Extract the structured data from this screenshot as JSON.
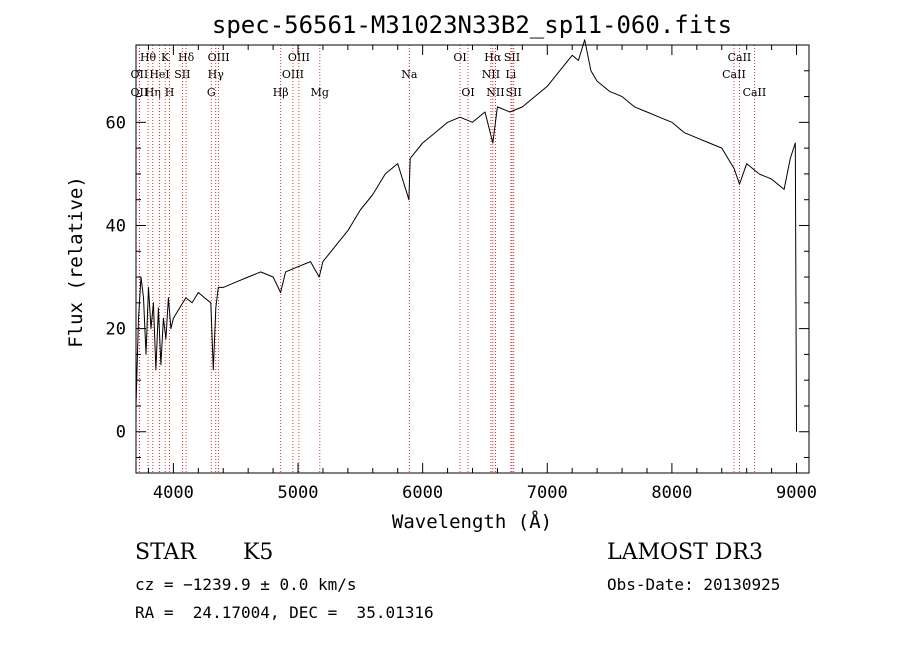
{
  "chart_data": {
    "type": "line",
    "title": "spec-56561-M31023N33B2_sp11-060.fits",
    "xlabel": "Wavelength (Å)",
    "ylabel": "Flux (relative)",
    "xlim": [
      3700,
      9100
    ],
    "ylim": [
      -8,
      75
    ],
    "xticks": [
      4000,
      5000,
      6000,
      7000,
      8000,
      9000
    ],
    "yticks": [
      0,
      20,
      40,
      60
    ],
    "xtick_labels": [
      "4000",
      "5000",
      "6000",
      "7000",
      "8000",
      "9000"
    ],
    "ytick_labels": [
      "0",
      "20",
      "40",
      "60"
    ],
    "series": [
      {
        "name": "flux",
        "color": "#000000",
        "x": [
          3700,
          3720,
          3740,
          3760,
          3780,
          3800,
          3820,
          3840,
          3860,
          3880,
          3900,
          3920,
          3940,
          3960,
          3980,
          4000,
          4050,
          4100,
          4150,
          4200,
          4250,
          4300,
          4320,
          4340,
          4360,
          4400,
          4500,
          4600,
          4700,
          4800,
          4860,
          4900,
          5000,
          5100,
          5170,
          5200,
          5300,
          5400,
          5500,
          5600,
          5700,
          5800,
          5890,
          5900,
          6000,
          6100,
          6200,
          6300,
          6400,
          6500,
          6563,
          6600,
          6700,
          6800,
          6900,
          7000,
          7100,
          7200,
          7250,
          7300,
          7350,
          7400,
          7500,
          7600,
          7700,
          7800,
          7900,
          8000,
          8100,
          8200,
          8300,
          8400,
          8500,
          8542,
          8600,
          8700,
          8800,
          8900,
          8950,
          8990,
          9000
        ],
        "values": [
          5,
          22,
          30,
          26,
          15,
          28,
          20,
          25,
          12,
          24,
          13,
          22,
          18,
          26,
          20,
          22,
          24,
          26,
          25,
          27,
          26,
          25,
          12,
          24,
          28,
          28,
          29,
          30,
          31,
          30,
          27,
          31,
          32,
          33,
          30,
          33,
          36,
          39,
          43,
          46,
          50,
          52,
          45,
          53,
          56,
          58,
          60,
          61,
          60,
          62,
          56,
          63,
          62,
          63,
          65,
          67,
          70,
          73,
          72,
          76,
          70,
          68,
          66,
          65,
          63,
          62,
          61,
          60,
          58,
          57,
          56,
          55,
          51,
          48,
          52,
          50,
          49,
          47,
          53,
          56,
          0
        ]
      }
    ],
    "lines": [
      {
        "label": "Hθ",
        "x": 3797,
        "row": 0
      },
      {
        "label": "OII",
        "x": 3727,
        "row": 1
      },
      {
        "label": "OII",
        "x": 3727,
        "row": 2
      },
      {
        "label": "Hη",
        "x": 3835,
        "row": 2
      },
      {
        "label": "K",
        "x": 3934,
        "row": 0
      },
      {
        "label": "HeI",
        "x": 3889,
        "row": 1
      },
      {
        "label": "H",
        "x": 3969,
        "row": 2
      },
      {
        "label": "Hδ",
        "x": 4102,
        "row": 0
      },
      {
        "label": "SII",
        "x": 4072,
        "row": 1
      },
      {
        "label": "OIII",
        "x": 4363,
        "row": 0
      },
      {
        "label": "Hγ",
        "x": 4340,
        "row": 1
      },
      {
        "label": "G",
        "x": 4304,
        "row": 2
      },
      {
        "label": "OIII",
        "x": 5007,
        "row": 0
      },
      {
        "label": "OIII",
        "x": 4959,
        "row": 1
      },
      {
        "label": "Hβ",
        "x": 4861,
        "row": 2
      },
      {
        "label": "Mg",
        "x": 5175,
        "row": 2
      },
      {
        "label": "Na",
        "x": 5893,
        "row": 1
      },
      {
        "label": "OI",
        "x": 6300,
        "row": 0
      },
      {
        "label": "OI",
        "x": 6364,
        "row": 2
      },
      {
        "label": "Hα",
        "x": 6563,
        "row": 0
      },
      {
        "label": "NII",
        "x": 6548,
        "row": 1
      },
      {
        "label": "NII",
        "x": 6584,
        "row": 2
      },
      {
        "label": "SII",
        "x": 6717,
        "row": 0
      },
      {
        "label": "Li",
        "x": 6708,
        "row": 1
      },
      {
        "label": "SII",
        "x": 6731,
        "row": 2
      },
      {
        "label": "CaII",
        "x": 8542,
        "row": 0
      },
      {
        "label": "CaII",
        "x": 8498,
        "row": 1
      },
      {
        "label": "CaII",
        "x": 8662,
        "row": 2
      }
    ]
  },
  "info": {
    "object_class": "STAR",
    "subclass": "K5",
    "survey": "LAMOST DR3",
    "redshift": "cz = −1239.9 ± 0.0 km/s",
    "obs_date": "Obs-Date: 20130925",
    "coords": "RA =  24.17004, DEC =  35.01316"
  },
  "colors": {
    "spectrum": "#000000",
    "line_markers": "#cc0000"
  }
}
